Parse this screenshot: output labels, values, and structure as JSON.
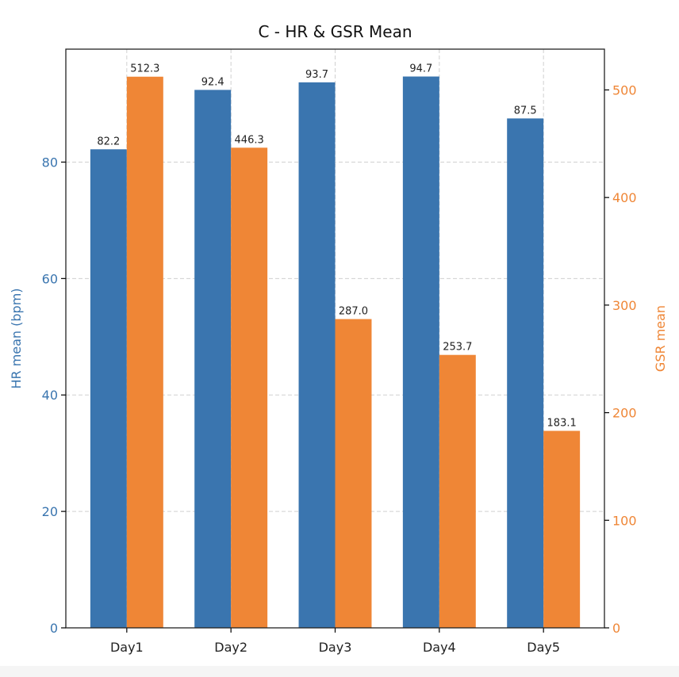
{
  "chart_data": {
    "type": "bar",
    "title": "C - HR & GSR Mean",
    "categories": [
      "Day1",
      "Day2",
      "Day3",
      "Day4",
      "Day5"
    ],
    "series": [
      {
        "name": "HR mean (bpm)",
        "axis": "left",
        "color": "#3a75af",
        "values": [
          82.2,
          92.4,
          93.7,
          94.7,
          87.5
        ],
        "labels": [
          "82.2",
          "92.4",
          "93.7",
          "94.7",
          "87.5"
        ]
      },
      {
        "name": "GSR mean",
        "axis": "right",
        "color": "#ef8636",
        "values": [
          512.3,
          446.3,
          287.0,
          253.7,
          183.1
        ],
        "labels": [
          "512.3",
          "446.3",
          "287.0",
          "253.7",
          "183.1"
        ]
      }
    ],
    "ylabel_left": "HR mean (bpm)",
    "ylabel_right": "GSR mean",
    "ylim_left": [
      0,
      99.4
    ],
    "ylim_right": [
      0,
      537.9
    ],
    "yticks_left": [
      0,
      20,
      40,
      60,
      80
    ],
    "yticks_right": [
      0,
      100,
      200,
      300,
      400,
      500
    ],
    "left_axis_color": "#3a75af",
    "right_axis_color": "#ef8636",
    "grid": true,
    "grid_style": "dashed"
  }
}
